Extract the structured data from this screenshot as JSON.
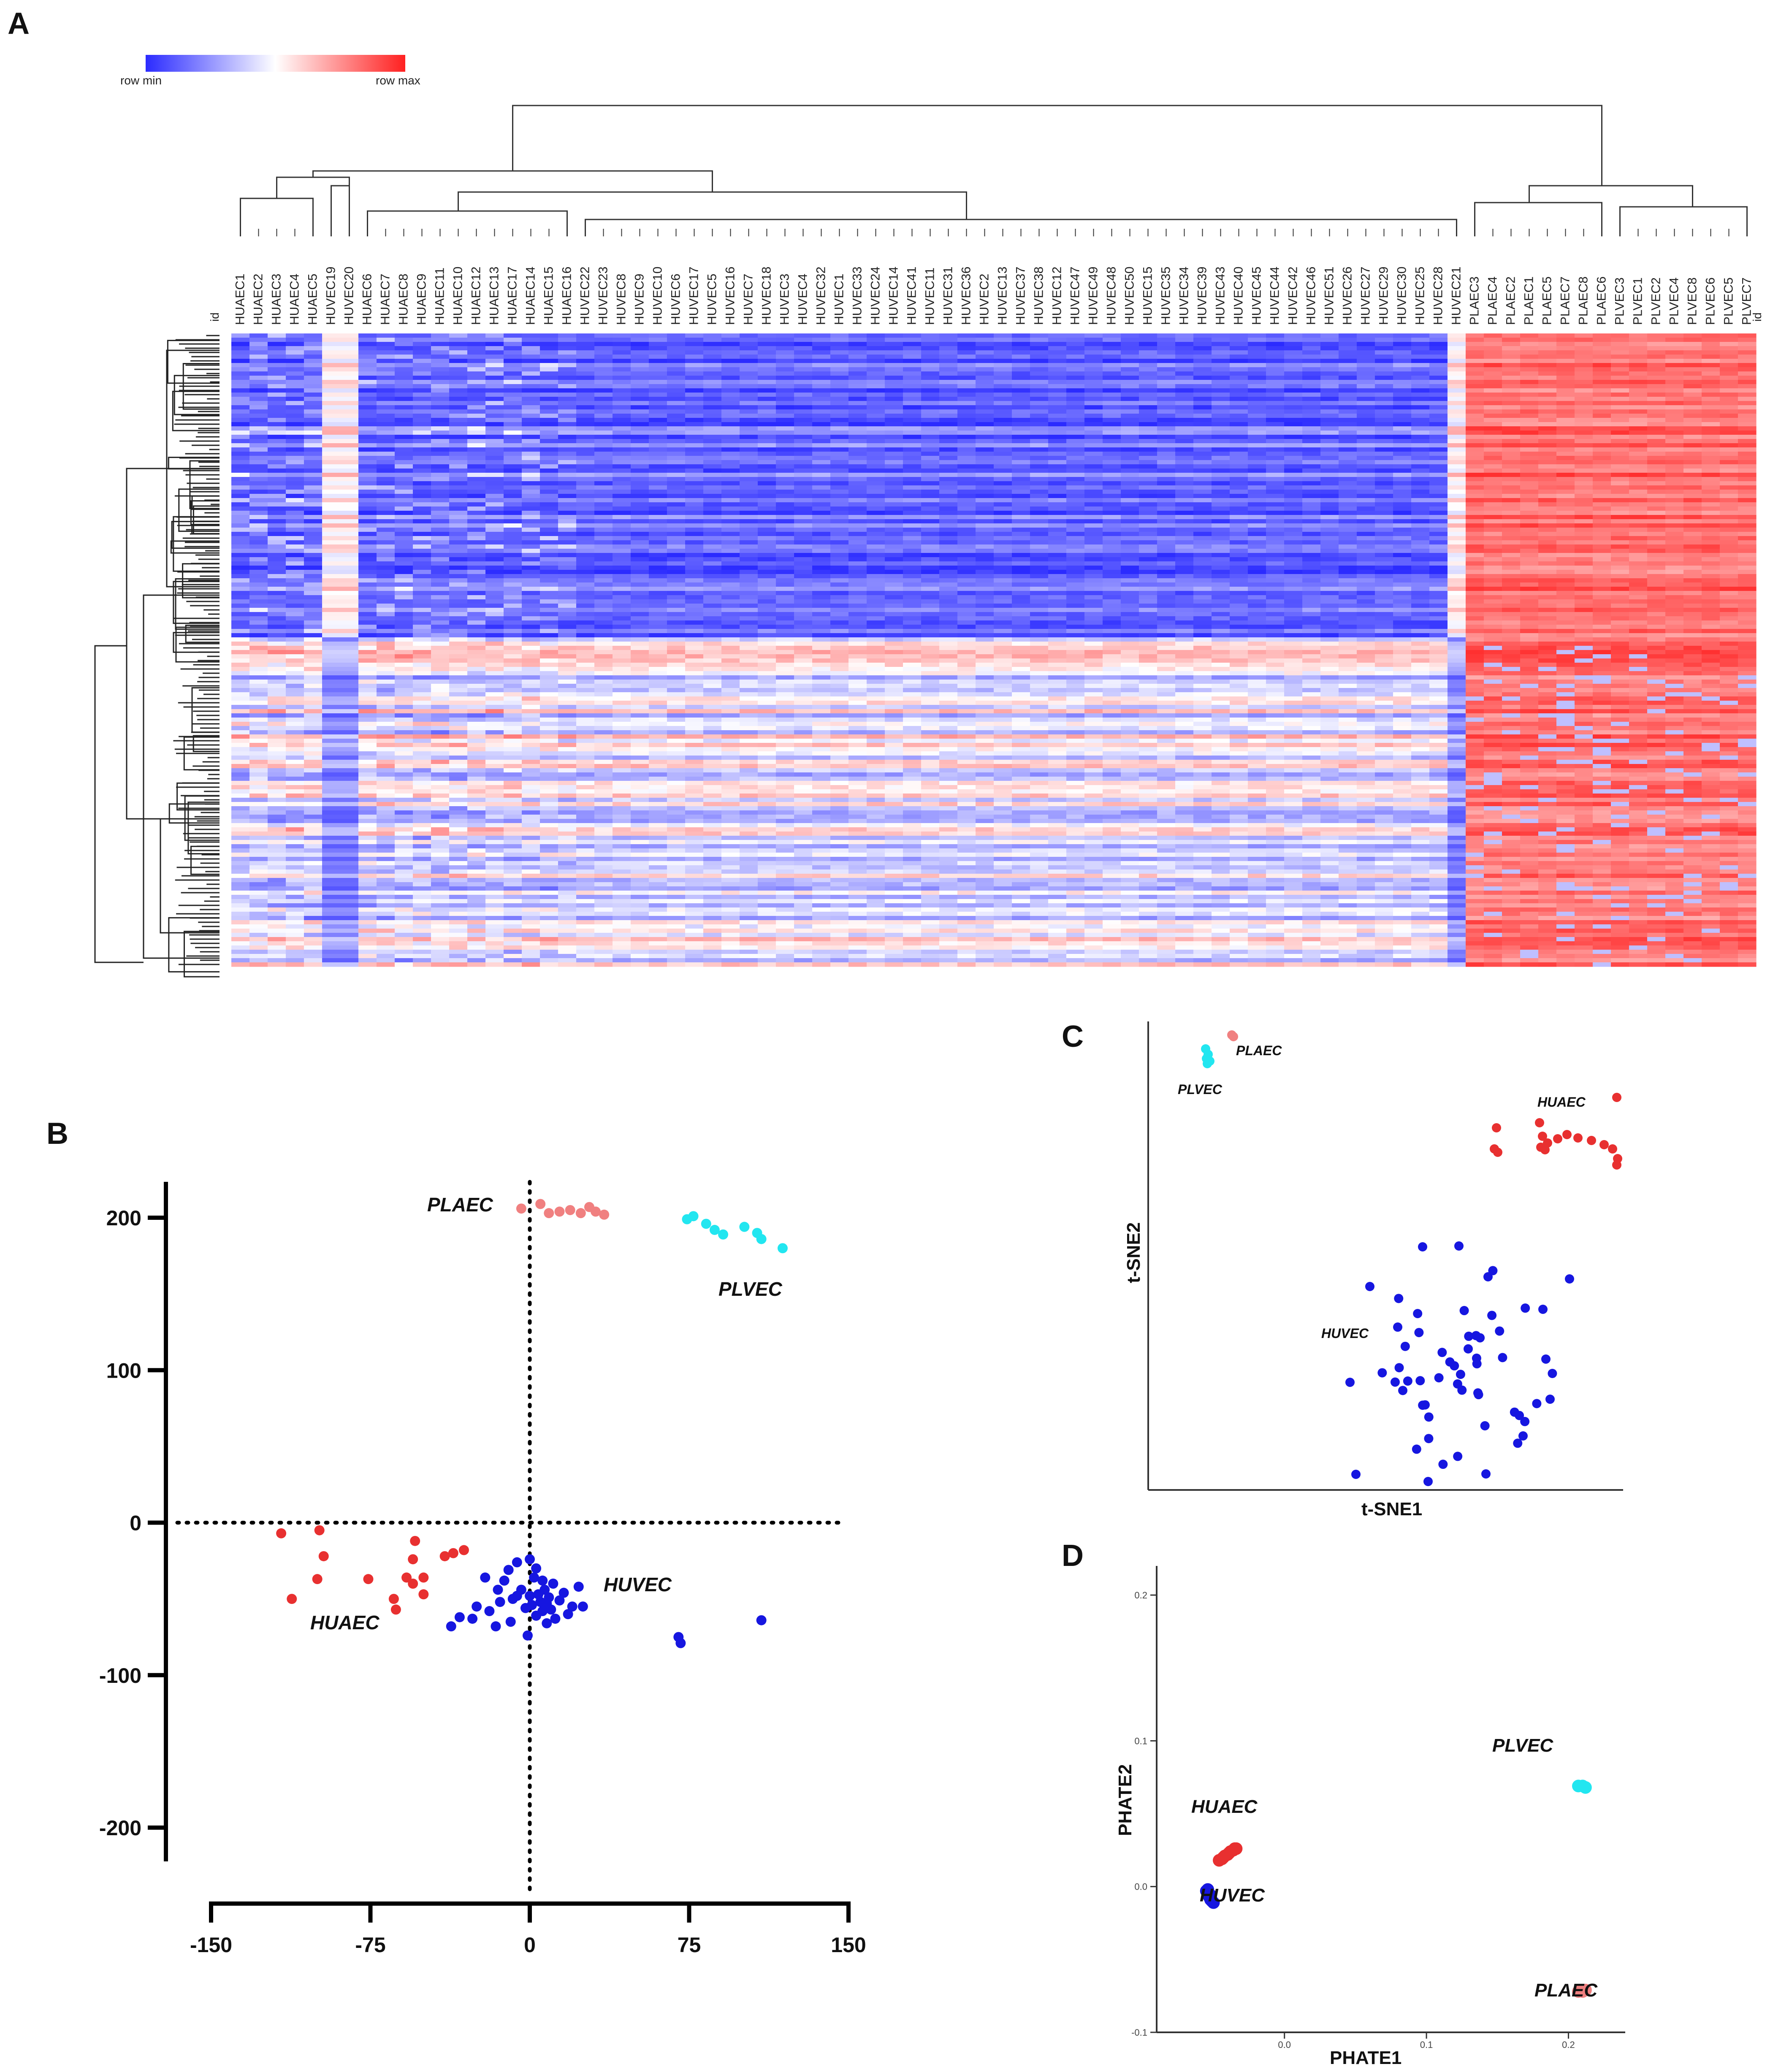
{
  "figure": {
    "panel_a": "A",
    "panel_b": "B",
    "panel_c": "C",
    "panel_d": "D"
  },
  "colors": {
    "huvec": "#1616e0",
    "huaec": "#e83030",
    "plaec": "#f08080",
    "plvec": "#22e6f0",
    "heat_min": "#2b2bff",
    "heat_mid": "#ffffff",
    "heat_max": "#ff2020"
  },
  "chart_data": [
    {
      "type": "heatmap",
      "panel": "A",
      "legend": {
        "min_label": "row  min",
        "max_label": "row  max"
      },
      "row_label": "id",
      "col_label": "id",
      "columns": [
        "HUAEC1",
        "HUAEC2",
        "HUAEC3",
        "HUAEC4",
        "HUAEC5",
        "HUVEC19",
        "HUVEC20",
        "HUAEC6",
        "HUAEC7",
        "HUAEC8",
        "HUAEC9",
        "HUAEC11",
        "HUAEC10",
        "HUAEC12",
        "HUAEC13",
        "HUAEC17",
        "HUAEC14",
        "HUAEC15",
        "HUAEC16",
        "HUVEC22",
        "HUVEC23",
        "HUVEC8",
        "HUVEC9",
        "HUVEC10",
        "HUVEC6",
        "HUVEC17",
        "HUVEC5",
        "HUVEC16",
        "HUVEC7",
        "HUVEC18",
        "HUVEC3",
        "HUVEC4",
        "HUVEC32",
        "HUVEC1",
        "HUVEC33",
        "HUVEC24",
        "HUVEC14",
        "HUVEC41",
        "HUVEC11",
        "HUVEC31",
        "HUVEC36",
        "HUVEC2",
        "HUVEC13",
        "HUVEC37",
        "HUVEC38",
        "HUVEC12",
        "HUVEC47",
        "HUVEC49",
        "HUVEC48",
        "HUVEC50",
        "HUVEC15",
        "HUVEC35",
        "HUVEC34",
        "HUVEC39",
        "HUVEC43",
        "HUVEC40",
        "HUVEC45",
        "HUVEC44",
        "HUVEC42",
        "HUVEC46",
        "HUVEC51",
        "HUVEC26",
        "HUVEC27",
        "HUVEC29",
        "HUVEC30",
        "HUVEC25",
        "HUVEC28",
        "HUVEC21",
        "PLAEC3",
        "PLAEC4",
        "PLAEC2",
        "PLAEC1",
        "PLAEC5",
        "PLAEC7",
        "PLAEC8",
        "PLAEC6",
        "PLVEC3",
        "PLVEC1",
        "PLVEC2",
        "PLVEC4",
        "PLVEC8",
        "PLVEC6",
        "PLVEC5",
        "PLVEC7"
      ]
    },
    {
      "type": "scatter",
      "panel": "B",
      "xlim": [
        -150,
        150
      ],
      "ylim": [
        -200,
        200
      ],
      "xticks": [
        "-150",
        "-75",
        "0",
        "75",
        "150"
      ],
      "yticks": [
        "200",
        "100",
        "0",
        "-100",
        "-200"
      ],
      "series": [
        {
          "name": "PLAEC",
          "color": "#f08080",
          "points": [
            [
              -4,
              206
            ],
            [
              5,
              209
            ],
            [
              9,
              203
            ],
            [
              14,
              204
            ],
            [
              19,
              205
            ],
            [
              24,
              203
            ],
            [
              28,
              207
            ],
            [
              31,
              204
            ],
            [
              35,
              202
            ]
          ]
        },
        {
          "name": "PLVEC",
          "color": "#22e6f0",
          "points": [
            [
              74,
              199
            ],
            [
              77,
              201
            ],
            [
              83,
              196
            ],
            [
              87,
              192
            ],
            [
              91,
              189
            ],
            [
              101,
              194
            ],
            [
              107,
              190
            ],
            [
              109,
              186
            ],
            [
              119,
              180
            ]
          ]
        },
        {
          "name": "HUAEC",
          "color": "#e83030",
          "points": [
            [
              -117,
              -7
            ],
            [
              -99,
              -5
            ],
            [
              -97,
              -22
            ],
            [
              -112,
              -50
            ],
            [
              -100,
              -37
            ],
            [
              -76,
              -37
            ],
            [
              -54,
              -12
            ],
            [
              -55,
              -24
            ],
            [
              -31,
              -18
            ],
            [
              -36,
              -20
            ],
            [
              -40,
              -22
            ],
            [
              -50,
              -36
            ],
            [
              -50,
              -47
            ],
            [
              -55,
              -40
            ],
            [
              -58,
              -36
            ],
            [
              -64,
              -50
            ],
            [
              -63,
              -57
            ]
          ]
        },
        {
          "name": "HUVEC",
          "color": "#1616e0",
          "points": [
            [
              -37,
              -68
            ],
            [
              -33,
              -62
            ],
            [
              -25,
              -55
            ],
            [
              -19,
              -58
            ],
            [
              -15,
              -44
            ],
            [
              -14,
              -52
            ],
            [
              -12,
              -38
            ],
            [
              -10,
              -31
            ],
            [
              -8,
              -50
            ],
            [
              -6,
              -26
            ],
            [
              -4,
              -44
            ],
            [
              -2,
              -56
            ],
            [
              0,
              -48
            ],
            [
              1,
              -54
            ],
            [
              2,
              -36
            ],
            [
              3,
              -61
            ],
            [
              4,
              -47
            ],
            [
              5,
              -52
            ],
            [
              6,
              -58
            ],
            [
              7,
              -44
            ],
            [
              8,
              -53
            ],
            [
              9,
              -49
            ],
            [
              10,
              -57
            ],
            [
              11,
              -40
            ],
            [
              12,
              -63
            ],
            [
              14,
              -51
            ],
            [
              16,
              -46
            ],
            [
              18,
              -60
            ],
            [
              20,
              -55
            ],
            [
              23,
              -42
            ],
            [
              25,
              -55
            ],
            [
              0,
              -24
            ],
            [
              -1,
              -74
            ],
            [
              -16,
              -68
            ],
            [
              -21,
              -36
            ],
            [
              3,
              -30
            ],
            [
              -6,
              -48
            ],
            [
              8,
              -66
            ],
            [
              -27,
              -63
            ],
            [
              -9,
              -65
            ],
            [
              6,
              -38
            ],
            [
              70,
              -75
            ],
            [
              71,
              -79
            ],
            [
              109,
              -64
            ]
          ]
        }
      ],
      "annotations": [
        "PLAEC",
        "PLVEC",
        "HUAEC",
        "HUVEC"
      ]
    },
    {
      "type": "scatter",
      "panel": "C",
      "xlabel": "t-SNE1",
      "ylabel": "t-SNE2",
      "annotations": [
        "PLAEC",
        "PLVEC",
        "HUAEC",
        "HUVEC"
      ]
    },
    {
      "type": "scatter",
      "panel": "D",
      "xlabel": "PHATE1",
      "ylabel": "PHATE2",
      "xlim": [
        -0.09,
        0.24
      ],
      "ylim": [
        -0.1,
        0.22
      ],
      "xticks": [
        "0.0",
        "0.1",
        "0.2"
      ],
      "yticks": [
        "0.2",
        "0.1",
        "0.0",
        "-0.1"
      ],
      "series": [
        {
          "name": "HUAEC",
          "color": "#e83030",
          "points": [
            [
              -0.046,
              0.018
            ],
            [
              -0.044,
              0.019
            ],
            [
              -0.042,
              0.021
            ],
            [
              -0.04,
              0.022
            ],
            [
              -0.038,
              0.024
            ],
            [
              -0.036,
              0.025
            ],
            [
              -0.034,
              0.026
            ],
            [
              -0.043,
              0.02
            ],
            [
              -0.039,
              0.023
            ],
            [
              -0.035,
              0.026
            ]
          ]
        },
        {
          "name": "HUVEC",
          "color": "#1616e0",
          "points": [
            [
              -0.055,
              -0.003
            ],
            [
              -0.054,
              -0.005
            ],
            [
              -0.053,
              -0.007
            ],
            [
              -0.052,
              -0.009
            ],
            [
              -0.051,
              -0.01
            ],
            [
              -0.054,
              -0.002
            ],
            [
              -0.052,
              -0.006
            ],
            [
              -0.05,
              -0.011
            ]
          ]
        },
        {
          "name": "PLVEC",
          "color": "#22e6f0",
          "points": [
            [
              0.207,
              0.069
            ],
            [
              0.21,
              0.069
            ],
            [
              0.212,
              0.068
            ]
          ]
        },
        {
          "name": "PLAEC",
          "color": "#f08080",
          "points": [
            [
              0.207,
              -0.072
            ],
            [
              0.21,
              -0.072
            ],
            [
              0.212,
              -0.071
            ]
          ]
        }
      ],
      "annotations": [
        "PLVEC",
        "HUAEC",
        "HUVEC",
        "PLAEC"
      ]
    }
  ]
}
